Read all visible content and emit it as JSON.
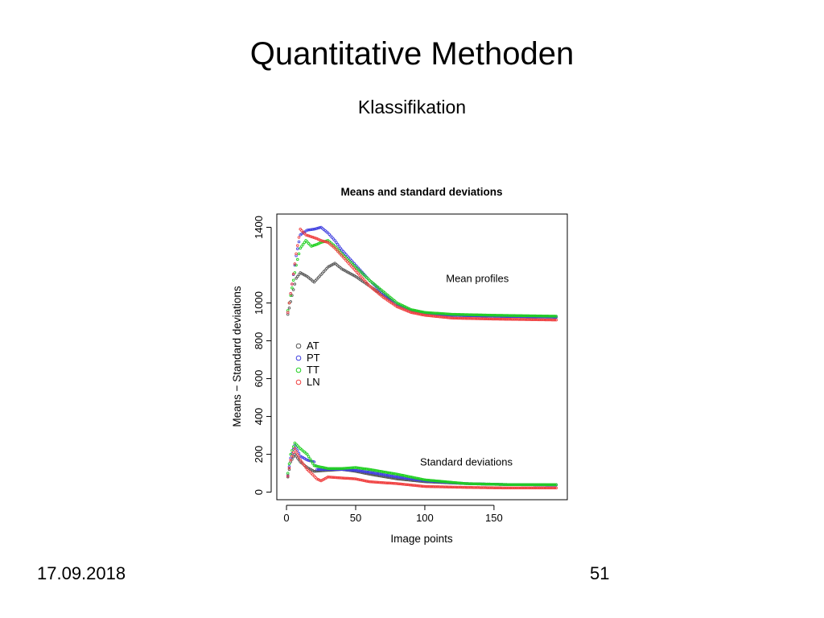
{
  "slide": {
    "title": "Quantitative Methoden",
    "subtitle": "Klassifikation"
  },
  "footer": {
    "date": "17.09.2018",
    "page": "51"
  },
  "chart_data": {
    "type": "scatter",
    "title": "Means and standard deviations",
    "xlabel": "Image points",
    "ylabel": "Means − Standard deviations",
    "xlim": [
      -7,
      203
    ],
    "ylim": [
      -40,
      1470
    ],
    "x_ticks": [
      0,
      50,
      100,
      150
    ],
    "y_ticks": [
      0,
      200,
      400,
      600,
      800,
      1000,
      1400
    ],
    "grid": false,
    "legend_position": "middle-left",
    "annotations": [
      {
        "text": "Mean profiles",
        "x": 138,
        "y": 1110
      },
      {
        "text": "Standard deviations",
        "x": 130,
        "y": 140
      }
    ],
    "x_step": 1,
    "x_start": 1,
    "x_end": 195,
    "series": [
      {
        "name": "AT",
        "color": "#555555",
        "mean_keys": [
          [
            1,
            940
          ],
          [
            4,
            1040
          ],
          [
            7,
            1130
          ],
          [
            10,
            1160
          ],
          [
            15,
            1140
          ],
          [
            20,
            1110
          ],
          [
            25,
            1150
          ],
          [
            30,
            1190
          ],
          [
            35,
            1210
          ],
          [
            40,
            1180
          ],
          [
            50,
            1140
          ],
          [
            60,
            1090
          ],
          [
            70,
            1040
          ],
          [
            80,
            990
          ],
          [
            90,
            960
          ],
          [
            100,
            945
          ],
          [
            120,
            935
          ],
          [
            150,
            930
          ],
          [
            195,
            925
          ]
        ],
        "sd_keys": [
          [
            1,
            80
          ],
          [
            3,
            160
          ],
          [
            6,
            200
          ],
          [
            10,
            160
          ],
          [
            15,
            130
          ],
          [
            20,
            110
          ],
          [
            30,
            115
          ],
          [
            40,
            120
          ],
          [
            50,
            110
          ],
          [
            60,
            95
          ],
          [
            80,
            70
          ],
          [
            100,
            55
          ],
          [
            130,
            45
          ],
          [
            160,
            40
          ],
          [
            195,
            38
          ]
        ]
      },
      {
        "name": "PT",
        "color": "#4040e0",
        "mean_keys": [
          [
            1,
            950
          ],
          [
            4,
            1100
          ],
          [
            7,
            1250
          ],
          [
            10,
            1360
          ],
          [
            15,
            1385
          ],
          [
            20,
            1390
          ],
          [
            25,
            1400
          ],
          [
            30,
            1370
          ],
          [
            35,
            1330
          ],
          [
            40,
            1280
          ],
          [
            50,
            1200
          ],
          [
            60,
            1120
          ],
          [
            70,
            1050
          ],
          [
            80,
            990
          ],
          [
            90,
            960
          ],
          [
            100,
            945
          ],
          [
            120,
            935
          ],
          [
            150,
            930
          ],
          [
            195,
            925
          ]
        ],
        "sd_keys": [
          [
            1,
            90
          ],
          [
            3,
            180
          ],
          [
            6,
            250
          ],
          [
            10,
            190
          ],
          [
            15,
            170
          ],
          [
            20,
            160
          ],
          [
            22,
            120
          ],
          [
            30,
            120
          ],
          [
            40,
            120
          ],
          [
            50,
            115
          ],
          [
            60,
            105
          ],
          [
            80,
            80
          ],
          [
            100,
            60
          ],
          [
            130,
            45
          ],
          [
            160,
            40
          ],
          [
            195,
            38
          ]
        ]
      },
      {
        "name": "TT",
        "color": "#20d020",
        "mean_keys": [
          [
            1,
            960
          ],
          [
            4,
            1080
          ],
          [
            7,
            1200
          ],
          [
            10,
            1290
          ],
          [
            14,
            1330
          ],
          [
            18,
            1300
          ],
          [
            22,
            1310
          ],
          [
            25,
            1320
          ],
          [
            30,
            1330
          ],
          [
            35,
            1300
          ],
          [
            40,
            1260
          ],
          [
            50,
            1190
          ],
          [
            60,
            1120
          ],
          [
            70,
            1060
          ],
          [
            80,
            1000
          ],
          [
            90,
            965
          ],
          [
            100,
            950
          ],
          [
            120,
            940
          ],
          [
            150,
            935
          ],
          [
            195,
            930
          ]
        ],
        "sd_keys": [
          [
            1,
            100
          ],
          [
            3,
            200
          ],
          [
            6,
            260
          ],
          [
            10,
            230
          ],
          [
            15,
            200
          ],
          [
            20,
            140
          ],
          [
            30,
            125
          ],
          [
            40,
            125
          ],
          [
            50,
            130
          ],
          [
            60,
            120
          ],
          [
            80,
            95
          ],
          [
            100,
            65
          ],
          [
            130,
            45
          ],
          [
            160,
            40
          ],
          [
            195,
            40
          ]
        ]
      },
      {
        "name": "LN",
        "color": "#f04040",
        "mean_keys": [
          [
            1,
            950
          ],
          [
            4,
            1100
          ],
          [
            7,
            1260
          ],
          [
            10,
            1390
          ],
          [
            14,
            1360
          ],
          [
            18,
            1350
          ],
          [
            22,
            1340
          ],
          [
            25,
            1330
          ],
          [
            30,
            1320
          ],
          [
            35,
            1290
          ],
          [
            40,
            1250
          ],
          [
            50,
            1170
          ],
          [
            60,
            1090
          ],
          [
            70,
            1030
          ],
          [
            80,
            980
          ],
          [
            90,
            950
          ],
          [
            100,
            935
          ],
          [
            120,
            920
          ],
          [
            150,
            915
          ],
          [
            195,
            910
          ]
        ],
        "sd_keys": [
          [
            1,
            85
          ],
          [
            3,
            170
          ],
          [
            6,
            230
          ],
          [
            10,
            170
          ],
          [
            15,
            120
          ],
          [
            18,
            100
          ],
          [
            22,
            70
          ],
          [
            25,
            60
          ],
          [
            30,
            80
          ],
          [
            40,
            75
          ],
          [
            50,
            70
          ],
          [
            60,
            55
          ],
          [
            80,
            45
          ],
          [
            100,
            30
          ],
          [
            130,
            25
          ],
          [
            160,
            22
          ],
          [
            195,
            22
          ]
        ]
      }
    ]
  }
}
